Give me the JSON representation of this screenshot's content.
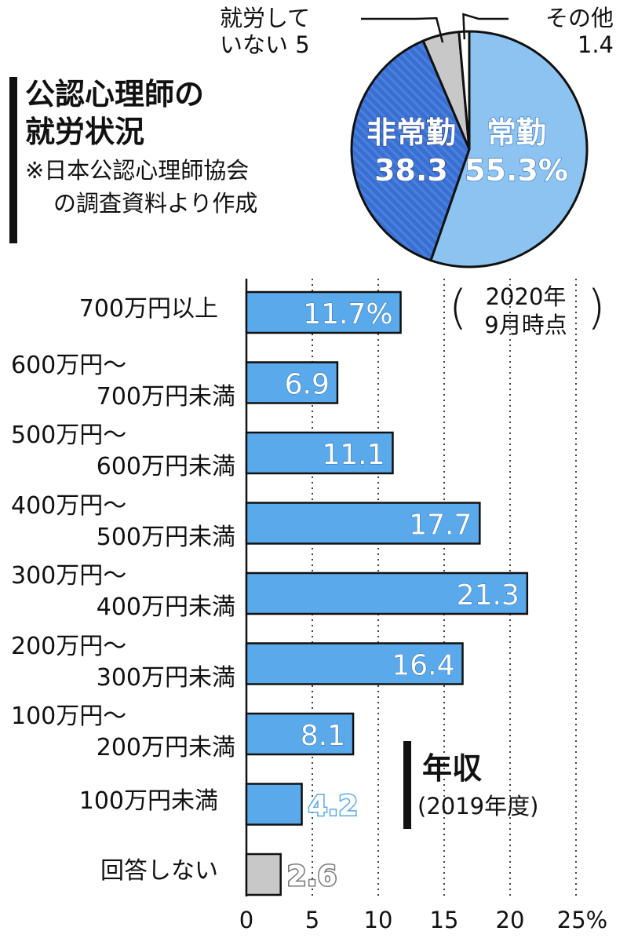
{
  "title_lines": [
    "公認心理師の",
    "就労状況"
  ],
  "source_lines": [
    "※日本公認心理師協会",
    "の調査資料より作成"
  ],
  "date_note_lines": [
    "2020年",
    "9月時点"
  ],
  "colors": {
    "pie_regular": "#8cc3f0",
    "pie_nonregular": "#3a6fd2",
    "pie_unemployed": "#c8c8c8",
    "pie_other": "#ffffff",
    "bar": "#5aa9ea",
    "bar_none": "#c8c8c8",
    "outline": "#111111"
  },
  "chart_data": [
    {
      "type": "pie",
      "slices": [
        {
          "label": "常勤",
          "value": 55.3,
          "value_text": "55.3%"
        },
        {
          "label": "非常勤",
          "value": 38.3,
          "value_text": "38.3"
        },
        {
          "label": "就労していない",
          "value": 5,
          "value_text": "5"
        },
        {
          "label": "その他",
          "value": 1.4,
          "value_text": "1.4"
        }
      ],
      "outside_labels": {
        "unemployed": [
          "就労して",
          "いない 5"
        ],
        "other": [
          "その他",
          "1.4"
        ]
      }
    },
    {
      "type": "bar",
      "orientation": "horizontal",
      "title": "年収",
      "subtitle": "(2019年度)",
      "categories": [
        [
          "700万円以上"
        ],
        [
          "600万円〜",
          "700万円未満"
        ],
        [
          "500万円〜",
          "600万円未満"
        ],
        [
          "400万円〜",
          "500万円未満"
        ],
        [
          "300万円〜",
          "400万円未満"
        ],
        [
          "200万円〜",
          "300万円未満"
        ],
        [
          "100万円〜",
          "200万円未満"
        ],
        [
          "100万円未満"
        ],
        [
          "回答しない"
        ]
      ],
      "values": [
        11.7,
        6.9,
        11.1,
        17.7,
        21.3,
        16.4,
        8.1,
        4.2,
        2.6
      ],
      "value_labels": [
        "11.7%",
        "6.9",
        "11.1",
        "17.7",
        "21.3",
        "16.4",
        "8.1",
        "4.2",
        "2.6"
      ],
      "xlim": [
        0,
        25
      ],
      "x_ticks": [
        "0",
        "5",
        "10",
        "15",
        "20",
        "25%"
      ],
      "x_tick_values": [
        0,
        5,
        10,
        15,
        20,
        25
      ],
      "grid": "dotted vertical"
    }
  ]
}
